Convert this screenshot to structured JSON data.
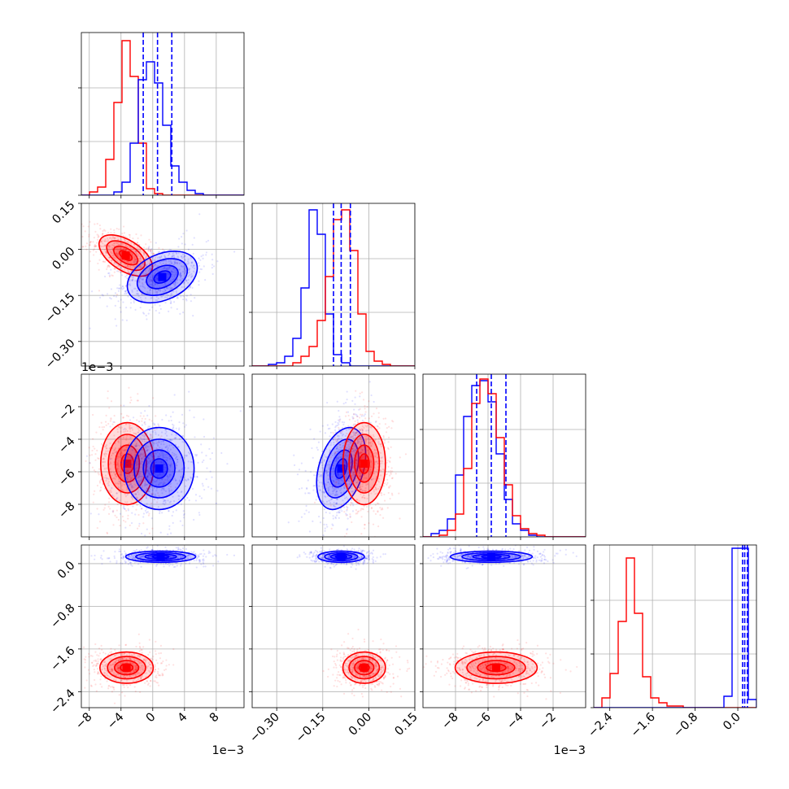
{
  "chart_data": {
    "type": "corner",
    "colors": {
      "series_a": "#0000ff",
      "series_b": "#ff0000"
    },
    "grid": true,
    "parameters": [
      {
        "range": [
          -9,
          11.5
        ],
        "ticks": [
          -8,
          -4,
          0,
          4,
          8
        ],
        "tick_labels": [
          "−8",
          "−4",
          "0",
          "4",
          "8"
        ],
        "offset_text": "1e−3"
      },
      {
        "range": [
          -0.38,
          0.15
        ],
        "ticks": [
          -0.3,
          -0.15,
          0.0,
          0.15
        ],
        "tick_labels": [
          "−0.30",
          "−0.15",
          "0.00",
          "0.15"
        ],
        "offset_text": ""
      },
      {
        "range": [
          -10,
          0
        ],
        "ticks": [
          -8,
          -6,
          -4,
          -2
        ],
        "tick_labels": [
          "−8",
          "−6",
          "−4",
          "−2"
        ],
        "offset_text": "1e−3"
      },
      {
        "range": [
          -2.7,
          0.35
        ],
        "ticks": [
          -2.4,
          -1.6,
          -0.8,
          0.0
        ],
        "tick_labels": [
          "−2.4",
          "−1.6",
          "−0.8",
          "0.0"
        ],
        "offset_text": ""
      }
    ],
    "diagonal": [
      {
        "param": 0,
        "bin_edges": [
          -9,
          11.5
        ],
        "n_bins": 20,
        "series": [
          {
            "color": "series_b",
            "counts": [
              0,
              0.02,
              0.05,
              0.22,
              0.57,
              0.95,
              0.73,
              0.32,
              0.04,
              0.01,
              0,
              0,
              0,
              0,
              0,
              0,
              0,
              0,
              0,
              0
            ]
          },
          {
            "color": "series_a",
            "counts": [
              0,
              0,
              0,
              0,
              0.02,
              0.08,
              0.32,
              0.71,
              0.82,
              0.69,
              0.43,
              0.18,
              0.08,
              0.03,
              0.01,
              0,
              0,
              0,
              0,
              0
            ]
          }
        ],
        "quantile_lines": [
          -1.2,
          0.6,
          2.4
        ]
      },
      {
        "param": 1,
        "bin_edges": [
          -0.38,
          0.15
        ],
        "n_bins": 20,
        "series": [
          {
            "color": "series_a",
            "counts": [
              0,
              0,
              0.01,
              0.02,
              0.06,
              0.17,
              0.48,
              0.96,
              0.81,
              0.32,
              0.07,
              0.02,
              0,
              0,
              0,
              0,
              0,
              0,
              0,
              0
            ]
          },
          {
            "color": "series_b",
            "counts": [
              0,
              0,
              0,
              0,
              0,
              0.02,
              0.06,
              0.12,
              0.28,
              0.55,
              0.9,
              0.96,
              0.71,
              0.32,
              0.09,
              0.03,
              0.01,
              0,
              0,
              0
            ]
          }
        ],
        "quantile_lines": [
          -0.115,
          -0.09,
          -0.06
        ]
      },
      {
        "param": 2,
        "bin_edges": [
          -10,
          0
        ],
        "n_bins": 20,
        "series": [
          {
            "color": "series_a",
            "counts": [
              0,
              0.02,
              0.04,
              0.11,
              0.38,
              0.74,
              0.93,
              0.96,
              0.83,
              0.51,
              0.23,
              0.08,
              0.04,
              0.01,
              0,
              0,
              0,
              0,
              0,
              0
            ]
          },
          {
            "color": "series_b",
            "counts": [
              0,
              0,
              0.01,
              0.04,
              0.14,
              0.42,
              0.82,
              0.97,
              0.88,
              0.61,
              0.32,
              0.13,
              0.05,
              0.02,
              0.01,
              0,
              0,
              0,
              0,
              0
            ]
          }
        ],
        "quantile_lines": [
          -6.7,
          -5.8,
          -4.9
        ]
      },
      {
        "param": 3,
        "bin_edges": [
          -2.7,
          0.35
        ],
        "n_bins": 20,
        "series": [
          {
            "color": "series_b",
            "counts": [
              0,
              0.06,
              0.21,
              0.53,
              0.92,
              0.58,
              0.19,
              0.06,
              0.03,
              0.01,
              0.01,
              0,
              0,
              0,
              0,
              0,
              0,
              0,
              0,
              0
            ]
          },
          {
            "color": "series_a",
            "counts": [
              0,
              0,
              0,
              0,
              0,
              0,
              0,
              0,
              0,
              0,
              0,
              0,
              0,
              0,
              0,
              0,
              0.07,
              0.98,
              0.98,
              0.05
            ]
          }
        ],
        "quantile_lines": [
          0.09,
          0.13,
          0.18
        ]
      }
    ],
    "joint": [
      {
        "x": 0,
        "y": 1,
        "series": [
          {
            "color": "series_b",
            "mean": [
              -3.4,
              -0.02
            ],
            "sd": [
              1.6,
              0.032
            ],
            "rho": -0.55
          },
          {
            "color": "series_a",
            "mean": [
              1.2,
              -0.09
            ],
            "sd": [
              2.1,
              0.04
            ],
            "rho": 0.35
          }
        ]
      },
      {
        "x": 0,
        "y": 2,
        "series": [
          {
            "color": "series_b",
            "mean": [
              -3.2,
              -5.5
            ],
            "sd": [
              1.6,
              1.2
            ],
            "rho": 0.0
          },
          {
            "color": "series_a",
            "mean": [
              0.8,
              -5.8
            ],
            "sd": [
              2.1,
              1.2
            ],
            "rho": 0.0
          }
        ]
      },
      {
        "x": 1,
        "y": 2,
        "series": [
          {
            "color": "series_a",
            "mean": [
              -0.09,
              -5.8
            ],
            "sd": [
              0.038,
              1.2
            ],
            "rho": 0.35
          },
          {
            "color": "series_b",
            "mean": [
              -0.015,
              -5.5
            ],
            "sd": [
              0.033,
              1.2
            ],
            "rho": 0.0
          }
        ]
      },
      {
        "x": 0,
        "y": 3,
        "series": [
          {
            "color": "series_a",
            "mean": [
              1.0,
              0.13
            ],
            "sd": [
              2.1,
              0.05
            ],
            "rho": 0.0
          },
          {
            "color": "series_b",
            "mean": [
              -3.3,
              -1.95
            ],
            "sd": [
              1.6,
              0.14
            ],
            "rho": 0.0
          }
        ]
      },
      {
        "x": 1,
        "y": 3,
        "series": [
          {
            "color": "series_a",
            "mean": [
              -0.09,
              0.13
            ],
            "sd": [
              0.036,
              0.05
            ],
            "rho": 0.0
          },
          {
            "color": "series_b",
            "mean": [
              -0.015,
              -1.95
            ],
            "sd": [
              0.033,
              0.14
            ],
            "rho": 0.0
          }
        ]
      },
      {
        "x": 2,
        "y": 3,
        "series": [
          {
            "color": "series_a",
            "mean": [
              -5.8,
              0.13
            ],
            "sd": [
              1.2,
              0.05
            ],
            "rho": 0.0
          },
          {
            "color": "series_b",
            "mean": [
              -5.5,
              -1.95
            ],
            "sd": [
              1.2,
              0.14
            ],
            "rho": 0.0
          }
        ]
      }
    ]
  }
}
